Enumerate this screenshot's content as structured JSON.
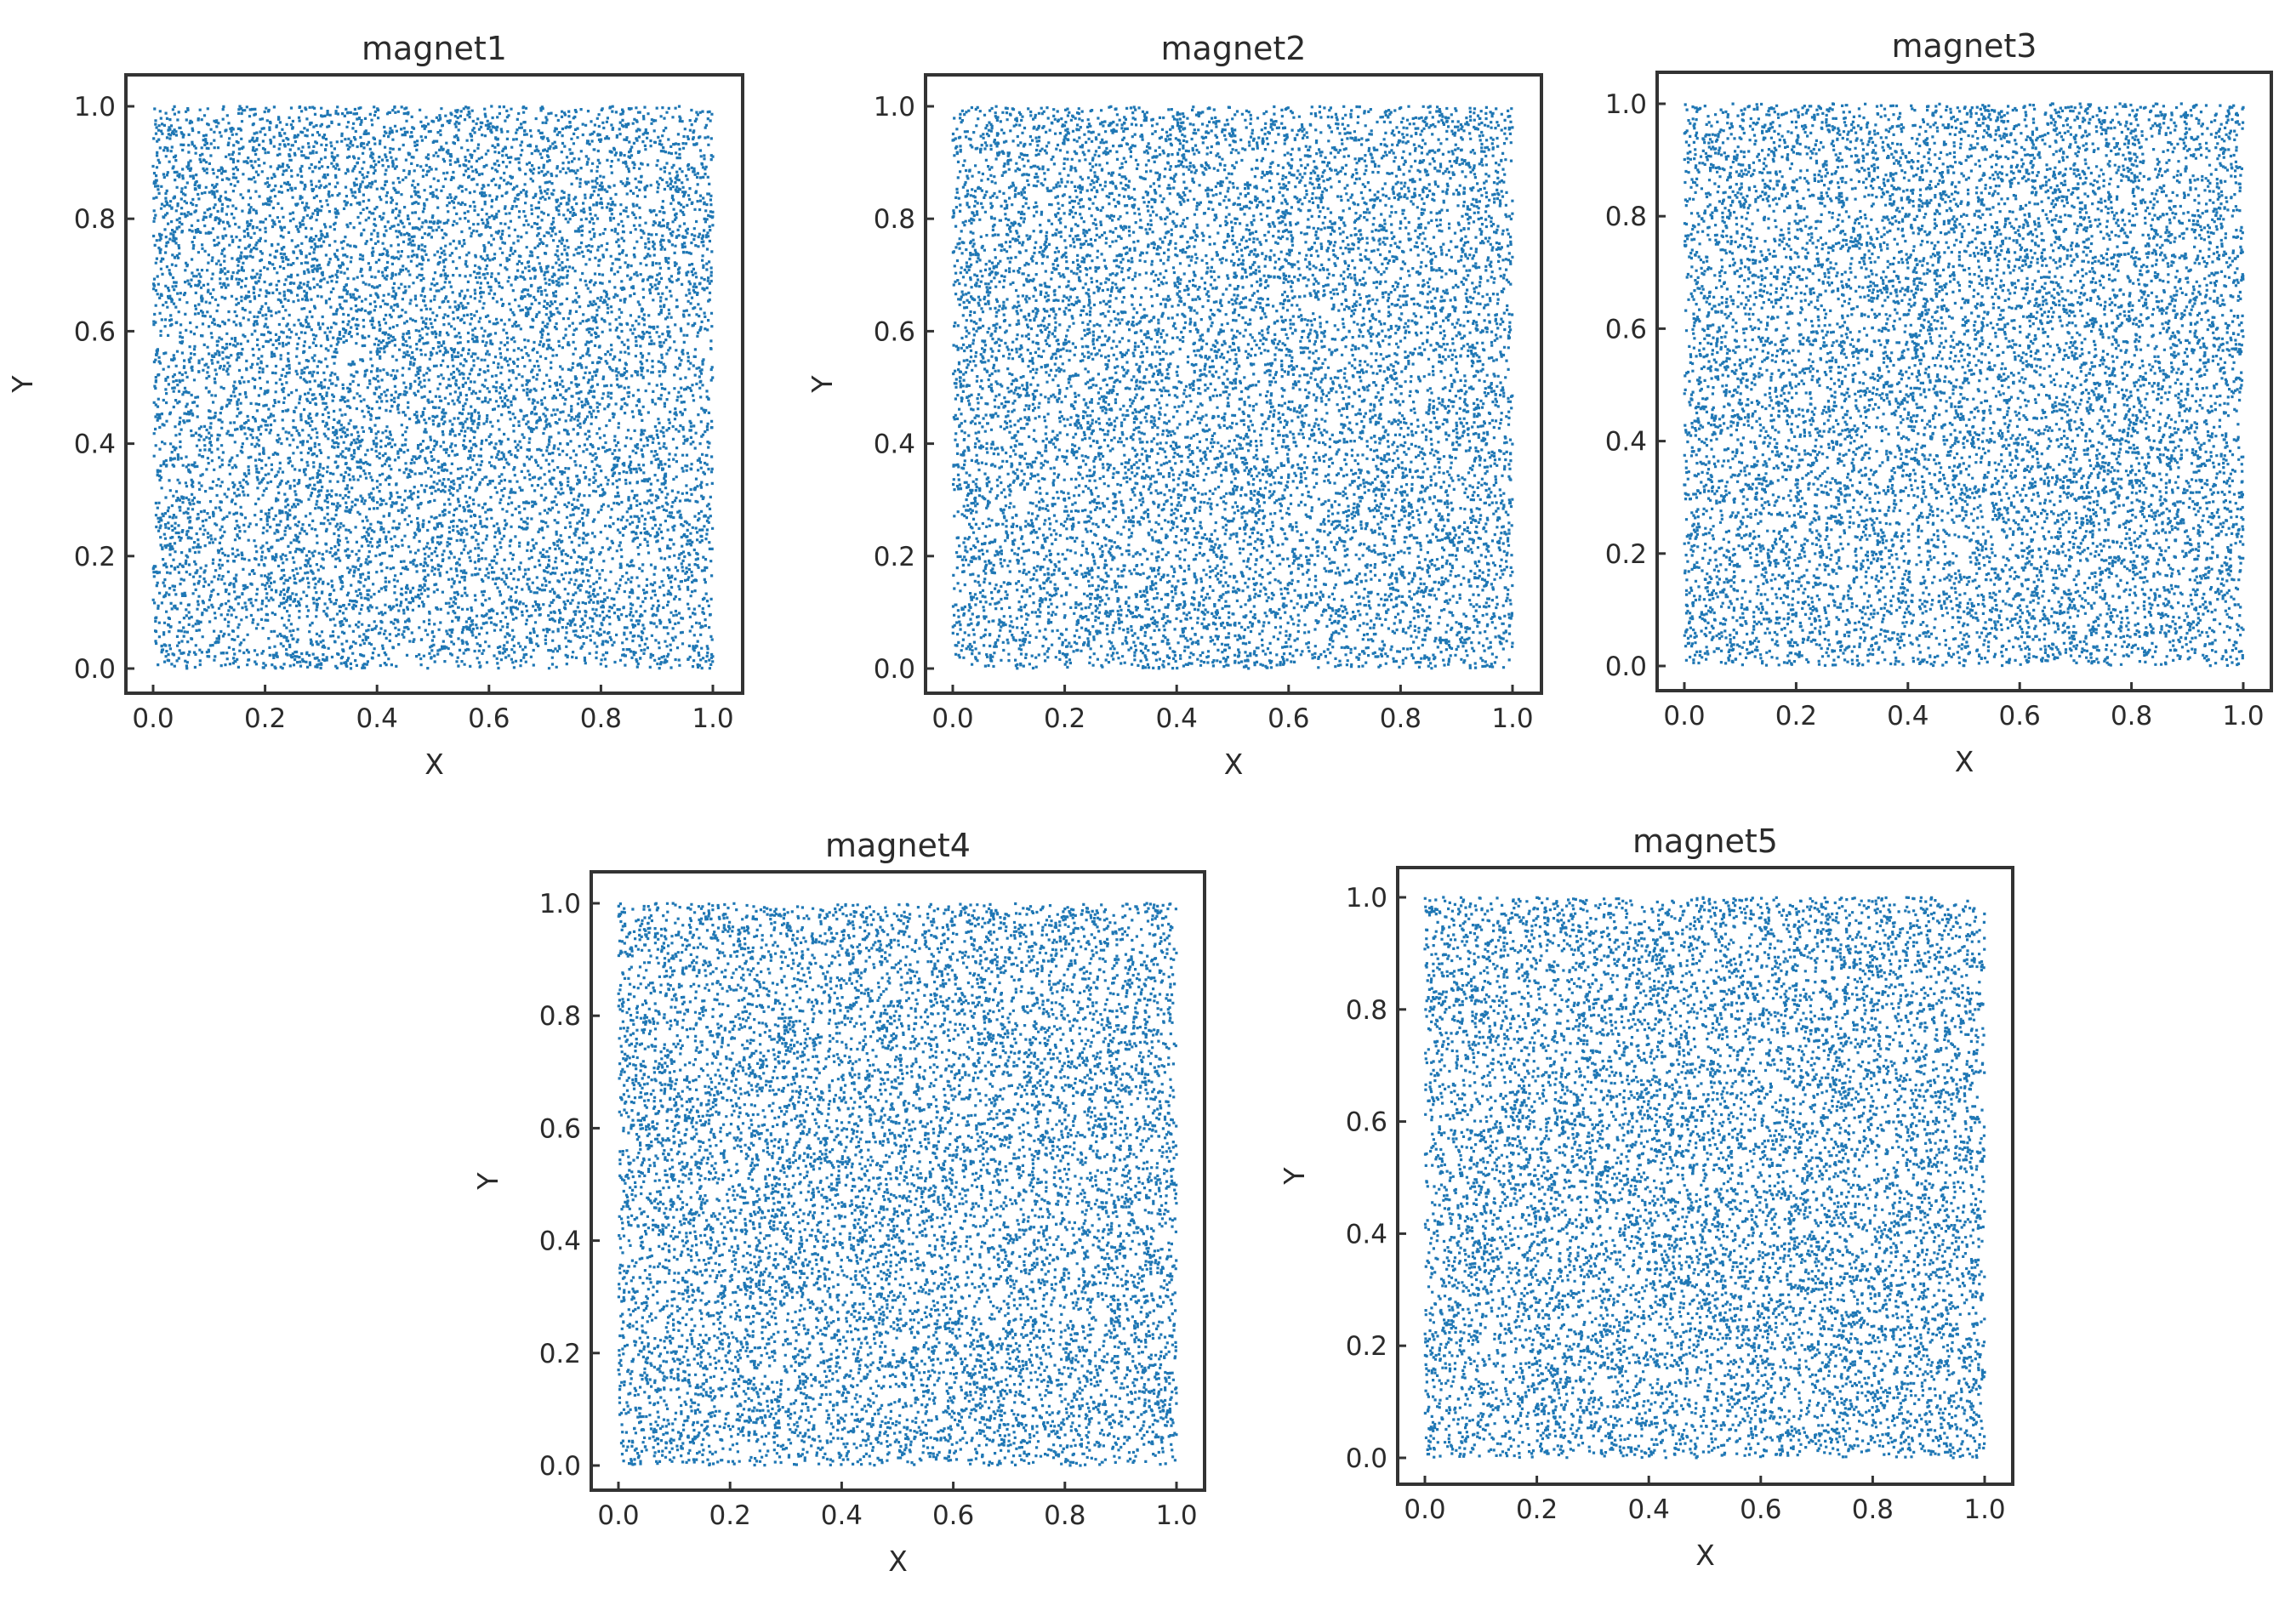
{
  "chart_data": [
    {
      "type": "scatter",
      "title": "magnet1",
      "xlabel": "X",
      "ylabel": "Y",
      "xlim": [
        0.0,
        1.0
      ],
      "ylim": [
        0.0,
        1.0
      ],
      "xticks": [
        "0.0",
        "0.2",
        "0.4",
        "0.6",
        "0.8",
        "1.0"
      ],
      "yticks": [
        "0.0",
        "0.2",
        "0.4",
        "0.6",
        "0.8",
        "1.0"
      ],
      "grid": false,
      "series": [
        {
          "distribution": "uniform",
          "x_range": [
            0.0,
            1.0
          ],
          "y_range": [
            0.0,
            1.0
          ],
          "approx_point_count": 10000,
          "color": "#1f77b4"
        }
      ]
    },
    {
      "type": "scatter",
      "title": "magnet2",
      "xlabel": "X",
      "ylabel": "Y",
      "xlim": [
        0.0,
        1.0
      ],
      "ylim": [
        0.0,
        1.0
      ],
      "xticks": [
        "0.0",
        "0.2",
        "0.4",
        "0.6",
        "0.8",
        "1.0"
      ],
      "yticks": [
        "0.0",
        "0.2",
        "0.4",
        "0.6",
        "0.8",
        "1.0"
      ],
      "grid": false,
      "series": [
        {
          "distribution": "uniform",
          "x_range": [
            0.0,
            1.0
          ],
          "y_range": [
            0.0,
            1.0
          ],
          "approx_point_count": 10000,
          "color": "#1f77b4"
        }
      ]
    },
    {
      "type": "scatter",
      "title": "magnet3",
      "xlabel": "X",
      "ylabel": "",
      "xlim": [
        0.0,
        1.0
      ],
      "ylim": [
        0.0,
        1.0
      ],
      "xticks": [
        "0.0",
        "0.2",
        "0.4",
        "0.6",
        "0.8",
        "1.0"
      ],
      "yticks": [
        "0.0",
        "0.2",
        "0.4",
        "0.6",
        "0.8",
        "1.0"
      ],
      "grid": false,
      "series": [
        {
          "distribution": "uniform",
          "x_range": [
            0.0,
            1.0
          ],
          "y_range": [
            0.0,
            1.0
          ],
          "approx_point_count": 10000,
          "color": "#1f77b4"
        }
      ]
    },
    {
      "type": "scatter",
      "title": "magnet4",
      "xlabel": "X",
      "ylabel": "Y",
      "xlim": [
        0.0,
        1.0
      ],
      "ylim": [
        0.0,
        1.0
      ],
      "xticks": [
        "0.0",
        "0.2",
        "0.4",
        "0.6",
        "0.8",
        "1.0"
      ],
      "yticks": [
        "0.0",
        "0.2",
        "0.4",
        "0.6",
        "0.8",
        "1.0"
      ],
      "grid": false,
      "series": [
        {
          "distribution": "uniform",
          "x_range": [
            0.0,
            1.0
          ],
          "y_range": [
            0.0,
            1.0
          ],
          "approx_point_count": 10000,
          "color": "#1f77b4"
        }
      ]
    },
    {
      "type": "scatter",
      "title": "magnet5",
      "xlabel": "X",
      "ylabel": "Y",
      "xlim": [
        0.0,
        1.0
      ],
      "ylim": [
        0.0,
        1.0
      ],
      "xticks": [
        "0.0",
        "0.2",
        "0.4",
        "0.6",
        "0.8",
        "1.0"
      ],
      "yticks": [
        "0.0",
        "0.2",
        "0.4",
        "0.6",
        "0.8",
        "1.0"
      ],
      "grid": false,
      "series": [
        {
          "distribution": "uniform",
          "x_range": [
            0.0,
            1.0
          ],
          "y_range": [
            0.0,
            1.0
          ],
          "approx_point_count": 10000,
          "color": "#1f77b4"
        }
      ]
    }
  ]
}
